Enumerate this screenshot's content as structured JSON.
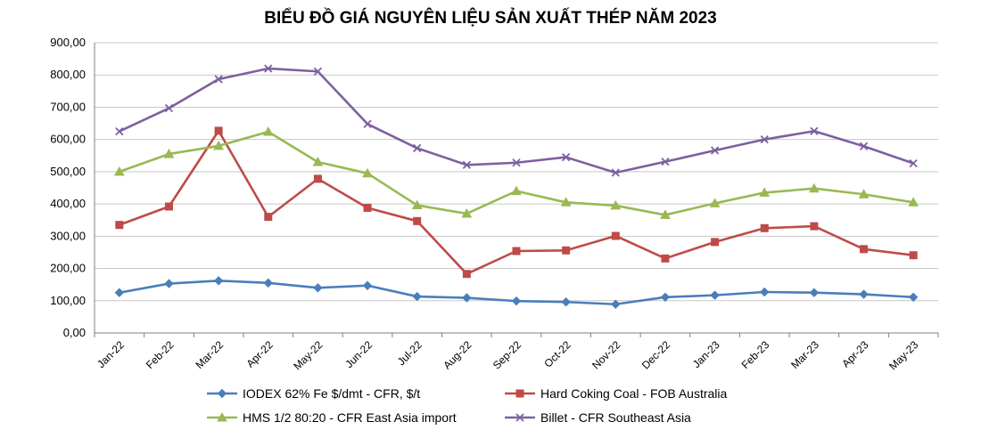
{
  "chart_data": {
    "type": "line",
    "title": "BIỂU ĐỒ GIÁ NGUYÊN LIỆU SẢN XUẤT THÉP NĂM 2023",
    "xlabel": "",
    "ylabel": "",
    "ylim": [
      0,
      900
    ],
    "yticks": [
      "0,00",
      "100,00",
      "200,00",
      "300,00",
      "400,00",
      "500,00",
      "600,00",
      "700,00",
      "800,00",
      "900,00"
    ],
    "grid": true,
    "legend_position": "bottom",
    "categories": [
      "Jan-22",
      "Feb-22",
      "Mar-22",
      "Apr-22",
      "May-22",
      "Jun-22",
      "Jul-22",
      "Aug-22",
      "Sep-22",
      "Oct-22",
      "Nov-22",
      "Dec-22",
      "Jan-23",
      "Feb-23",
      "Mar-23",
      "Apr-23",
      "May-23"
    ],
    "series": [
      {
        "name": "IODEX 62% Fe $/dmt - CFR, $/t",
        "color": "#4a7ebb",
        "marker": "diamond",
        "values": [
          125,
          153,
          162,
          155,
          140,
          147,
          113,
          109,
          99,
          96,
          89,
          111,
          117,
          127,
          125,
          120,
          111
        ]
      },
      {
        "name": "Hard Coking Coal - FOB Australia",
        "color": "#be4b48",
        "marker": "square",
        "values": [
          335,
          392,
          627,
          360,
          478,
          388,
          347,
          183,
          254,
          256,
          301,
          231,
          282,
          325,
          331,
          260,
          241
        ]
      },
      {
        "name": "HMS 1/2 80:20 - CFR East Asia import",
        "color": "#98b954",
        "marker": "triangle",
        "values": [
          500,
          555,
          580,
          624,
          530,
          495,
          396,
          370,
          440,
          405,
          395,
          366,
          402,
          435,
          448,
          430,
          405
        ]
      },
      {
        "name": "Billet - CFR Southeast Asia",
        "color": "#7d60a0",
        "marker": "x",
        "values": [
          625,
          697,
          787,
          820,
          811,
          648,
          573,
          521,
          528,
          545,
          497,
          531,
          566,
          600,
          626,
          579,
          526
        ]
      }
    ]
  }
}
